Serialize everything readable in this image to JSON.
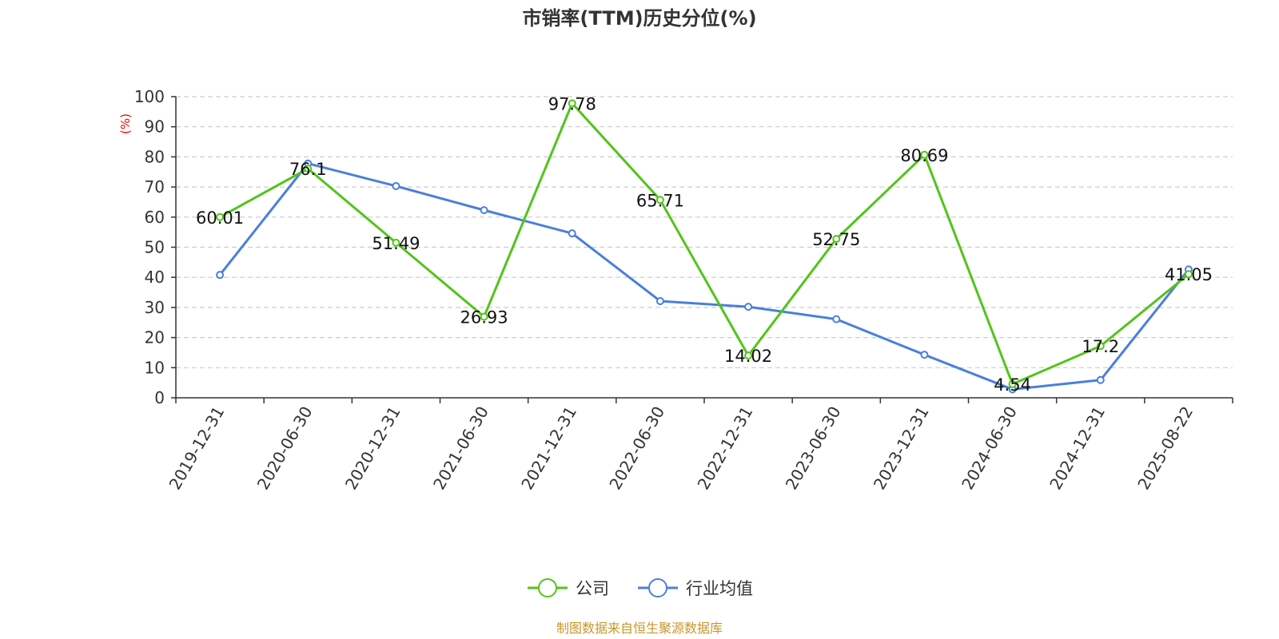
{
  "chart_data": {
    "type": "line",
    "title": "市销率(TTM)历史分位(%)",
    "ylabel": "(%)",
    "ylim": [
      0,
      100
    ],
    "yticks": [
      0,
      10,
      20,
      30,
      40,
      50,
      60,
      70,
      80,
      90,
      100
    ],
    "grid": true,
    "legend_position": "bottom",
    "categories": [
      "2019-12-31",
      "2020-06-30",
      "2020-12-31",
      "2021-06-30",
      "2021-12-31",
      "2022-06-30",
      "2022-12-31",
      "2023-06-30",
      "2023-12-31",
      "2024-06-30",
      "2024-12-31",
      "2025-08-22"
    ],
    "series": [
      {
        "name": "公司",
        "color": "#52c41a",
        "values": [
          60.01,
          76.1,
          51.49,
          26.93,
          97.78,
          65.71,
          14.02,
          52.75,
          80.69,
          4.54,
          17.2,
          41.05
        ],
        "labels": [
          "60.01",
          "76.1",
          "51.49",
          "26.93",
          "97.78",
          "65.71",
          "14.02",
          "52.75",
          "80.69",
          "4.54",
          "17.2",
          "41.05"
        ]
      },
      {
        "name": "行业均值",
        "color": "#4a7fdc",
        "values": [
          40.8,
          77.8,
          70.3,
          62.3,
          54.6,
          32.1,
          30.2,
          26.1,
          14.3,
          2.8,
          5.9,
          42.6
        ]
      }
    ],
    "source": "制图数据来自恒生聚源数据库",
    "axis_label_color": "#ff0000",
    "source_color": "#c8962a"
  }
}
